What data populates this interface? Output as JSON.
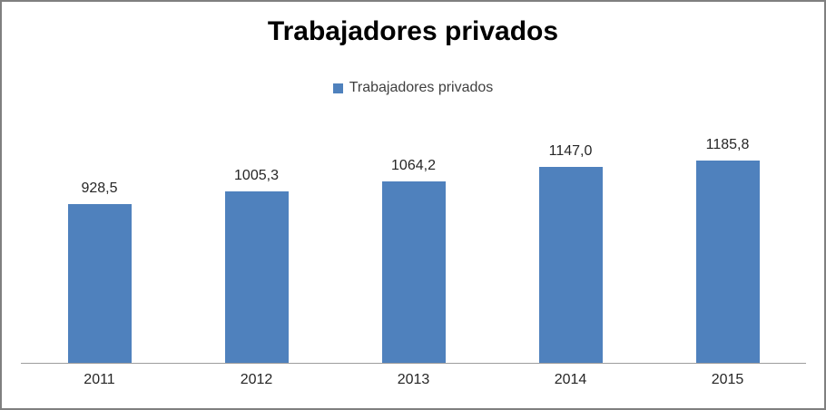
{
  "chart_data": {
    "type": "bar",
    "title": "Trabajadores privados",
    "legend": [
      "Trabajadores privados"
    ],
    "legend_position": "top",
    "categories": [
      "2011",
      "2012",
      "2013",
      "2014",
      "2015"
    ],
    "series": [
      {
        "name": "Trabajadores privados",
        "values": [
          928.5,
          1005.3,
          1064.2,
          1147.0,
          1185.8
        ],
        "color": "#4F81BD"
      }
    ],
    "value_labels": [
      "928,5",
      "1005,3",
      "1064,2",
      "1147,0",
      "1185,8"
    ],
    "grid": false,
    "xlabel": "",
    "ylabel": "",
    "colors": {
      "bar": "#4F81BD",
      "axis_line": "#9D9D9D",
      "title_text": "#000000",
      "label_text": "#262626",
      "legend_text": "#3F3F3F",
      "frame_border": "#7F7F7F",
      "background": "#FFFFFF"
    }
  }
}
